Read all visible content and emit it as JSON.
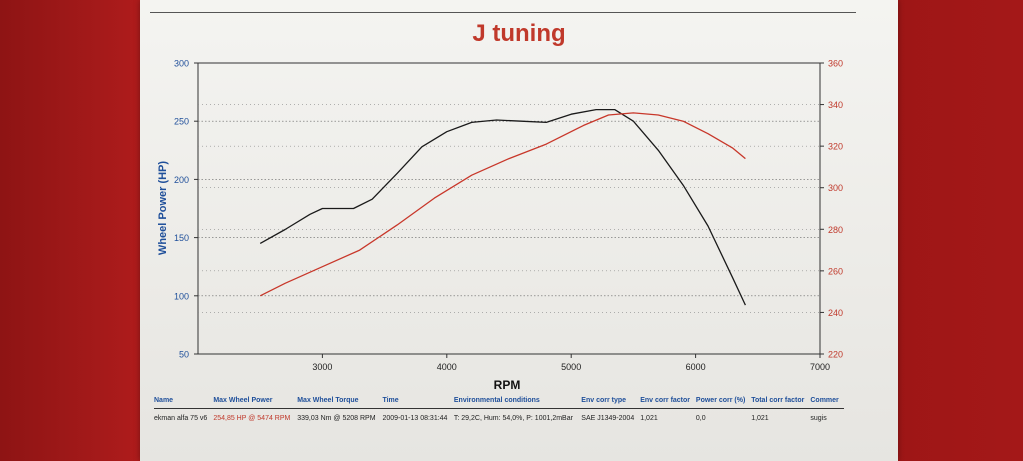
{
  "page": {
    "title": "J tuning"
  },
  "chart_data": {
    "type": "line",
    "title": "J tuning",
    "xlabel": "RPM",
    "ylabel": "Wheel Power (HP)",
    "y2label": "",
    "xlim": [
      2000,
      7000
    ],
    "ylim": [
      50,
      300
    ],
    "y2lim": [
      220,
      360
    ],
    "x_ticks": [
      3000,
      4000,
      5000,
      6000,
      7000
    ],
    "y_ticks": [
      50,
      100,
      150,
      200,
      250,
      300
    ],
    "y2_ticks": [
      220,
      240,
      260,
      280,
      300,
      320,
      340,
      360
    ],
    "grid": "horizontal dotted",
    "series": [
      {
        "color": "#1a1a1a",
        "axis": "left",
        "x": [
          2500,
          2700,
          2900,
          3000,
          3100,
          3250,
          3400,
          3600,
          3800,
          4000,
          4200,
          4400,
          4600,
          4800,
          5000,
          5200,
          5350,
          5500,
          5700,
          5900,
          6100,
          6300,
          6400
        ],
        "y": [
          145,
          157,
          170,
          175,
          175,
          175,
          183,
          205,
          228,
          241,
          249,
          251,
          250,
          249,
          256,
          260,
          260,
          250,
          225,
          195,
          160,
          115,
          92
        ]
      },
      {
        "color": "#c8372a",
        "axis": "right",
        "x": [
          2500,
          2700,
          3000,
          3300,
          3600,
          3900,
          4200,
          4500,
          4800,
          5100,
          5300,
          5500,
          5700,
          5900,
          6100,
          6300,
          6400
        ],
        "y": [
          248,
          254,
          262,
          270,
          282,
          295,
          306,
          314,
          321,
          330,
          335,
          336,
          335,
          332,
          326,
          319,
          314
        ]
      }
    ]
  },
  "info_table": {
    "headers": [
      "Name",
      "Max Wheel Power",
      "Max Wheel Torque",
      "Time",
      "Environmental conditions",
      "Env corr type",
      "Env corr factor",
      "Power corr (%)",
      "Total corr factor",
      "Commer"
    ],
    "row": [
      "ekman alfa 75 v6",
      "254,85 HP @ 5474 RPM",
      "339,03 Nm @ 5208 RPM",
      "2009-01-13 08:31:44",
      "T: 29,2C, Hum: 54,0%, P: 1001,2mBar",
      "SAE J1349-2004",
      "1,021",
      "0,0",
      "1,021",
      "sugis"
    ]
  },
  "colors": {
    "power_axis": "#1f4f9a",
    "torque_axis": "#c0392b",
    "title": "#c0392b"
  }
}
